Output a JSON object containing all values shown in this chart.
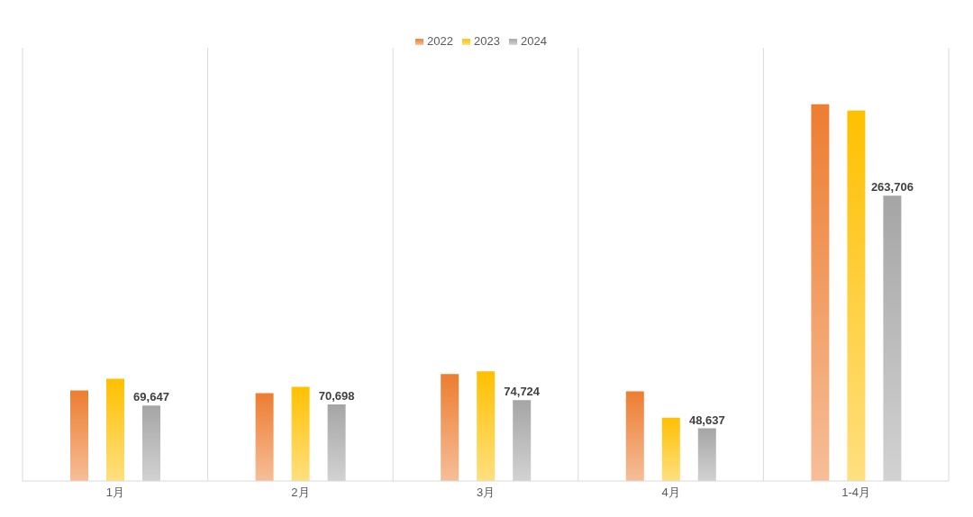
{
  "chart_data": {
    "type": "bar",
    "categories": [
      "1月",
      "2月",
      "3月",
      "4月",
      "1-4月"
    ],
    "series": [
      {
        "name": "2022",
        "color": "#ed7d31",
        "values": [
          83700,
          81200,
          98800,
          82900,
          348300
        ]
      },
      {
        "name": "2023",
        "color": "#ffc000",
        "values": [
          94600,
          87100,
          101300,
          58600,
          342400
        ]
      },
      {
        "name": "2024",
        "color": "#a5a5a5",
        "values": [
          69647,
          70698,
          74724,
          48637,
          263706
        ],
        "value_labels": [
          "69,647",
          "70,698",
          "74,724",
          "48,637",
          "263,706"
        ]
      }
    ],
    "legend": "top",
    "grid": "x"
  }
}
